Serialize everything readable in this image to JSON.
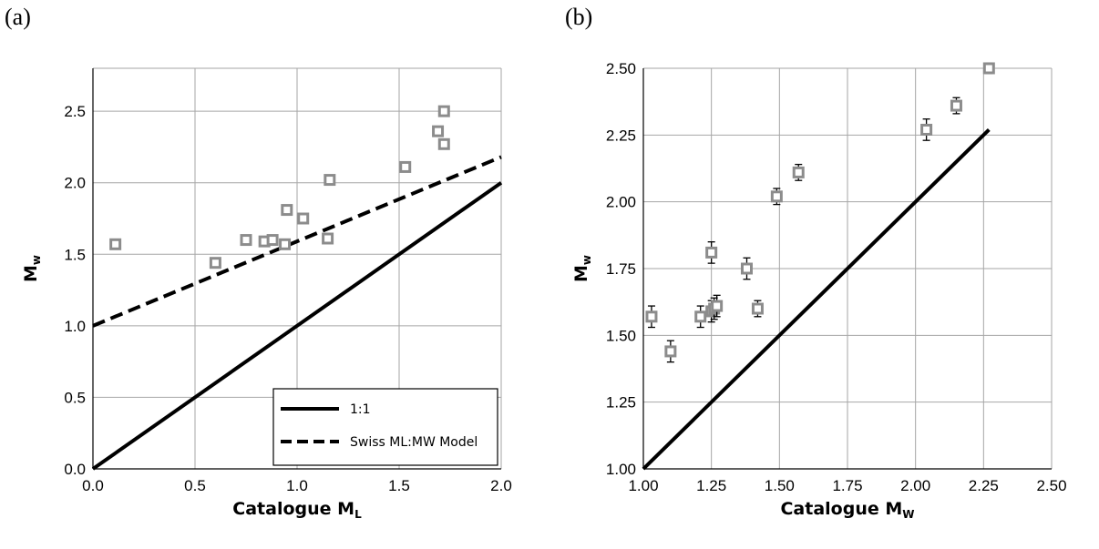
{
  "chart_data": [
    {
      "panel_label": "(a)",
      "type": "scatter",
      "xlabel": {
        "base": "Catalogue M",
        "sub": "L"
      },
      "ylabel": {
        "base": "M",
        "sub": "w"
      },
      "xlim": [
        0.0,
        2.0
      ],
      "ylim": [
        0.0,
        2.8
      ],
      "xticks": [
        "0.0",
        "0.5",
        "1.0",
        "1.5",
        "2.0"
      ],
      "yticks": [
        "0.0",
        "0.5",
        "1.0",
        "1.5",
        "2.0",
        "2.5"
      ],
      "grid": true,
      "legend_position": "bottom-right",
      "points": [
        {
          "x": 0.11,
          "y": 1.57
        },
        {
          "x": 0.6,
          "y": 1.44
        },
        {
          "x": 0.75,
          "y": 1.6
        },
        {
          "x": 0.84,
          "y": 1.59
        },
        {
          "x": 0.88,
          "y": 1.6
        },
        {
          "x": 0.94,
          "y": 1.57
        },
        {
          "x": 0.95,
          "y": 1.81
        },
        {
          "x": 1.03,
          "y": 1.75
        },
        {
          "x": 1.15,
          "y": 1.61
        },
        {
          "x": 1.16,
          "y": 2.02
        },
        {
          "x": 1.53,
          "y": 2.11
        },
        {
          "x": 1.69,
          "y": 2.36
        },
        {
          "x": 1.72,
          "y": 2.5
        },
        {
          "x": 1.72,
          "y": 2.27
        }
      ],
      "lines": [
        {
          "name": "1:1",
          "style": "solid",
          "x": [
            0.0,
            2.0
          ],
          "y": [
            0.0,
            2.0
          ]
        },
        {
          "name": "Swiss ML:MW Model",
          "style": "dashed",
          "x": [
            0.0,
            2.0
          ],
          "y": [
            1.0,
            2.18
          ]
        }
      ]
    },
    {
      "panel_label": "(b)",
      "type": "scatter",
      "xlabel": {
        "base": "Catalogue M",
        "sub": "W"
      },
      "ylabel": {
        "base": "M",
        "sub": "w"
      },
      "xlim": [
        1.0,
        2.5
      ],
      "ylim": [
        1.0,
        2.5
      ],
      "xticks": [
        "1.00",
        "1.25",
        "1.50",
        "1.75",
        "2.00",
        "2.25",
        "2.50"
      ],
      "yticks": [
        "1.00",
        "1.25",
        "1.50",
        "1.75",
        "2.00",
        "2.25",
        "2.50"
      ],
      "grid": true,
      "points": [
        {
          "x": 1.03,
          "y": 1.57,
          "err": 0.04
        },
        {
          "x": 1.1,
          "y": 1.44,
          "err": 0.04
        },
        {
          "x": 1.21,
          "y": 1.57,
          "err": 0.04
        },
        {
          "x": 1.25,
          "y": 1.81,
          "err": 0.04
        },
        {
          "x": 1.25,
          "y": 1.59,
          "err": 0.04
        },
        {
          "x": 1.26,
          "y": 1.6,
          "err": 0.04
        },
        {
          "x": 1.27,
          "y": 1.61,
          "err": 0.04
        },
        {
          "x": 1.38,
          "y": 1.75,
          "err": 0.04
        },
        {
          "x": 1.42,
          "y": 1.6,
          "err": 0.03
        },
        {
          "x": 1.49,
          "y": 2.02,
          "err": 0.03
        },
        {
          "x": 1.57,
          "y": 2.11,
          "err": 0.03
        },
        {
          "x": 2.04,
          "y": 2.27,
          "err": 0.04
        },
        {
          "x": 2.15,
          "y": 2.36,
          "err": 0.03
        },
        {
          "x": 2.27,
          "y": 2.5,
          "err": 0.02
        }
      ],
      "lines": [
        {
          "name": "1:1",
          "style": "solid",
          "x": [
            1.0,
            2.27
          ],
          "y": [
            1.0,
            2.27
          ]
        }
      ]
    }
  ]
}
